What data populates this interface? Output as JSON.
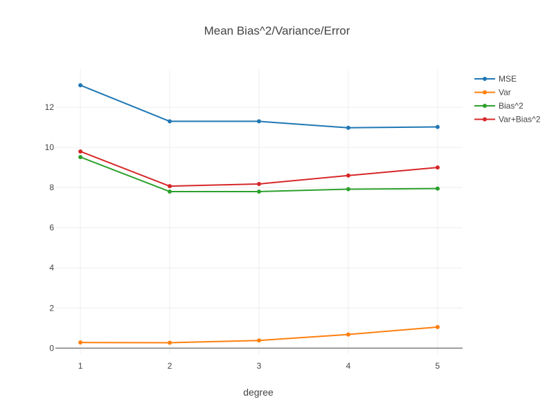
{
  "chart_data": {
    "type": "line",
    "title": "Mean Bias^2/Variance/Error",
    "xlabel": "degree",
    "ylabel": "",
    "x": [
      1,
      2,
      3,
      4,
      5
    ],
    "xlim": [
      0.72,
      5.28
    ],
    "ylim": [
      -0.3,
      13.9
    ],
    "xticks": [
      "1",
      "2",
      "3",
      "4",
      "5"
    ],
    "yticks": [
      0,
      2,
      4,
      6,
      8,
      10,
      12
    ],
    "grid": true,
    "legend": "top-right",
    "series": [
      {
        "name": "MSE",
        "color": "#1f77b4",
        "values": [
          13.1,
          11.3,
          11.3,
          10.98,
          11.02
        ]
      },
      {
        "name": "Var",
        "color": "#ff7f0e",
        "values": [
          0.28,
          0.27,
          0.38,
          0.68,
          1.05
        ]
      },
      {
        "name": "Bias^2",
        "color": "#2ca02c",
        "values": [
          9.52,
          7.8,
          7.8,
          7.92,
          7.95
        ]
      },
      {
        "name": "Var+Bias^2",
        "color": "#d62728",
        "values": [
          9.8,
          8.07,
          8.18,
          8.6,
          9.0
        ]
      }
    ]
  }
}
